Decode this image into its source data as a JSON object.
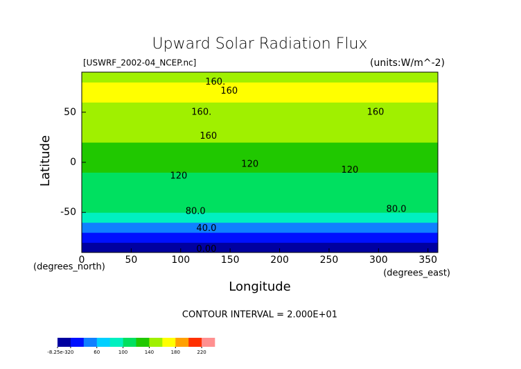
{
  "chart_data": {
    "type": "contour",
    "title": "Upward Solar Radiation Flux",
    "source": "[USWRF_2002-04_NCEP.nc]",
    "units": "(units:W/m^-2)",
    "x_label": "Longitude",
    "y_label": "Latitude",
    "x_unit": "(degrees_east)",
    "y_unit": "(degrees_north)",
    "annotation": "CONTOUR INTERVAL = 2.000E+01",
    "xlim": [
      0,
      360
    ],
    "xticks": [
      0,
      50,
      100,
      150,
      200,
      250,
      300,
      350
    ],
    "ylim": [
      -90,
      90
    ],
    "yticks": [
      -50,
      0,
      50
    ],
    "field": {
      "lat": [
        -85,
        -75,
        -65,
        -55,
        -45,
        -35,
        -25,
        -15,
        -5,
        5,
        15,
        25,
        35,
        45,
        55,
        65,
        75,
        85
      ],
      "values": [
        10,
        30,
        50,
        85,
        100,
        110,
        112,
        118,
        130,
        128,
        132,
        142,
        150,
        142,
        148,
        160,
        162,
        140
      ]
    },
    "contour_labels": [
      {
        "label": "160.",
        "x": 135,
        "y": 80
      },
      {
        "label": "160",
        "x": 149,
        "y": 71
      },
      {
        "label": "160.",
        "x": 121,
        "y": 50
      },
      {
        "label": "160",
        "x": 297,
        "y": 50
      },
      {
        "label": "160",
        "x": 128,
        "y": 26
      },
      {
        "label": "120",
        "x": 170,
        "y": -2
      },
      {
        "label": "120",
        "x": 271,
        "y": -8
      },
      {
        "label": "120",
        "x": 98,
        "y": -14
      },
      {
        "label": "80.0",
        "x": 115,
        "y": -49
      },
      {
        "label": "80.0",
        "x": 318,
        "y": -47
      },
      {
        "label": "40.0",
        "x": 126,
        "y": -66
      },
      {
        "label": "0.00",
        "x": 126,
        "y": -87
      }
    ],
    "colorbar": {
      "levels": [
        -0.00825,
        20,
        40,
        60,
        80,
        100,
        120,
        140,
        160,
        180,
        200,
        220,
        240
      ],
      "colors": [
        "#0000a0",
        "#0010ff",
        "#1080ff",
        "#00d0ff",
        "#00f0c0",
        "#00e060",
        "#20c800",
        "#a0f000",
        "#ffff00",
        "#ffa000",
        "#ff3000",
        "#ff9090"
      ],
      "ticks": [
        {
          "value": -0.00825,
          "label": "-8.25e-3"
        },
        20,
        60,
        100,
        140,
        180,
        220
      ]
    }
  }
}
